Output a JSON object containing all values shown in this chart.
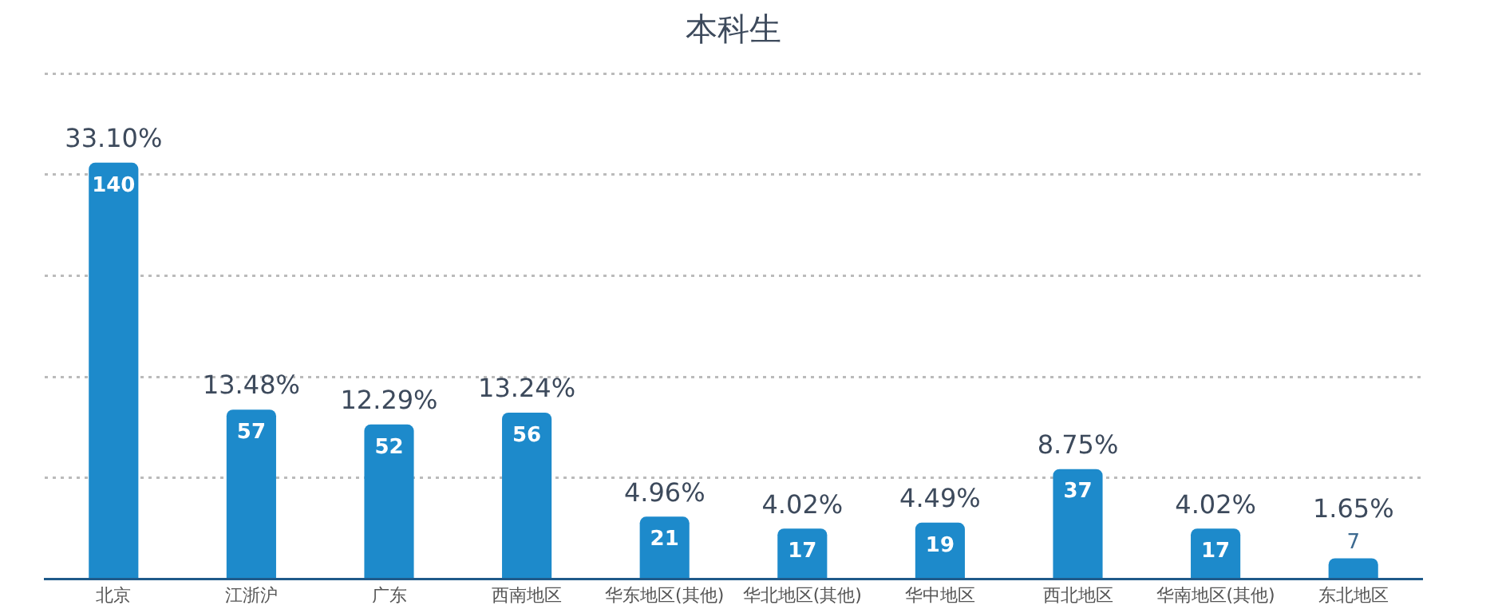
{
  "chart_data": {
    "type": "bar",
    "title": "本科生",
    "categories": [
      "北京",
      "江浙沪",
      "广东",
      "西南地区",
      "华东地区(其他)",
      "华北地区(其他)",
      "华中地区",
      "西北地区",
      "华南地区(其他)",
      "东北地区"
    ],
    "values": [
      140,
      57,
      52,
      56,
      21,
      17,
      19,
      37,
      17,
      7
    ],
    "color": "#1d8acb",
    "data_labels": true,
    "annotations": [
      {
        "text": "33.10%",
        "x": "北京",
        "y": 140
      },
      {
        "text": "13.48%",
        "x": "江浙沪",
        "y": 57
      },
      {
        "text": "12.29%",
        "x": "广东",
        "y": 52
      },
      {
        "text": "13.24%",
        "x": "西南地区",
        "y": 56
      },
      {
        "text": "4.96%",
        "x": "华东地区(其他)",
        "y": 21
      },
      {
        "text": "4.02%",
        "x": "华北地区(其他)",
        "y": 17
      },
      {
        "text": "4.49%",
        "x": "华中地区",
        "y": 19
      },
      {
        "text": "8.75%",
        "x": "西北地区",
        "y": 37
      },
      {
        "text": "4.02%",
        "x": "华南地区(其他)",
        "y": 17
      },
      {
        "text": "1.65%",
        "x": "东北地区",
        "y": 7
      }
    ],
    "ylim": [
      0,
      170
    ],
    "yticks": [
      {
        "value": 0,
        "label": null
      },
      {
        "value": 34,
        "label": null
      },
      {
        "value": 68,
        "label": null
      },
      {
        "value": 102,
        "label": null
      },
      {
        "value": 136,
        "label": null
      },
      {
        "value": 170,
        "label": null
      }
    ],
    "grid": "y",
    "legend": false,
    "tick_labels": "x"
  }
}
